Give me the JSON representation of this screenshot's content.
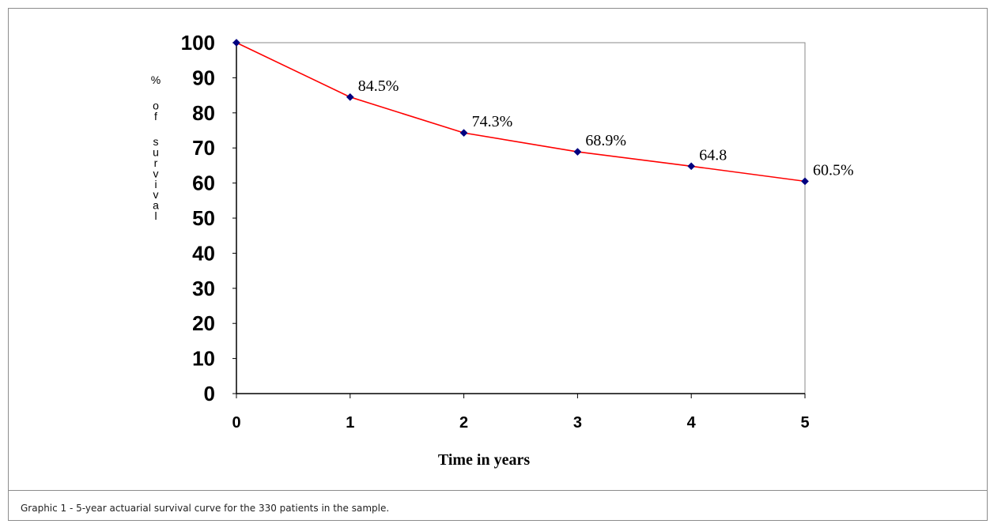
{
  "caption": "Graphic 1 - 5-year actuarial survival curve for the 330 patients in the sample.",
  "chart_data": {
    "type": "line",
    "title": "",
    "xlabel": "Time in years",
    "ylabel": "% of survival",
    "x": [
      0,
      1,
      2,
      3,
      4,
      5
    ],
    "xticks": [
      "0",
      "1",
      "2",
      "3",
      "4",
      "5"
    ],
    "yticks": [
      "0",
      "10",
      "20",
      "30",
      "40",
      "50",
      "60",
      "70",
      "80",
      "90",
      "100"
    ],
    "xlim": [
      0,
      5
    ],
    "ylim": [
      0,
      100
    ],
    "grid": false,
    "legend": "none",
    "series": [
      {
        "values": [
          100,
          84.5,
          74.3,
          68.9,
          64.8,
          60.5
        ],
        "color": "#ff0000",
        "marker": "diamond",
        "marker_color": "#000080"
      }
    ],
    "data_labels": [
      "",
      "84.5%",
      "74.3%",
      "68.9%",
      "64.8",
      "60.5%"
    ]
  }
}
